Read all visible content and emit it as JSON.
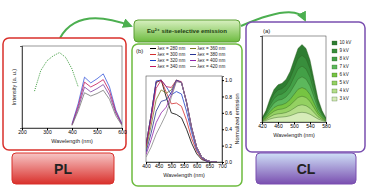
{
  "chart_data": [
    {
      "type": "line",
      "title": "PL",
      "x_label": "Wavelength (nm)",
      "y_label": "Intensity (a. u.)",
      "x": [
        250,
        275,
        300,
        325,
        350,
        375,
        400,
        425,
        450,
        475,
        500,
        525,
        550,
        575,
        600
      ],
      "xlim": [
        200,
        600
      ],
      "xticks": [
        200,
        300,
        400,
        500,
        600
      ],
      "ylim": [
        0,
        1
      ],
      "tick_labels": "x",
      "series": [
        {
          "color": "#3a9a3a",
          "line_style": "dotted",
          "values": [
            0.45,
            0.7,
            0.82,
            0.88,
            0.92,
            0.86,
            0.72,
            0.5,
            null,
            null,
            null,
            null,
            null,
            null,
            null
          ]
        },
        {
          "color": "#3b5bdb",
          "values": [
            null,
            null,
            null,
            null,
            null,
            null,
            0.05,
            0.3,
            0.62,
            0.55,
            0.6,
            0.66,
            0.5,
            0.22,
            0.05
          ]
        },
        {
          "color": "#c2185b",
          "values": [
            null,
            null,
            null,
            null,
            null,
            null,
            0.04,
            0.27,
            0.56,
            0.5,
            0.54,
            0.59,
            0.45,
            0.2,
            0.04
          ]
        },
        {
          "color": "#7b3fa0",
          "values": [
            null,
            null,
            null,
            null,
            null,
            null,
            0.04,
            0.24,
            0.5,
            0.44,
            0.48,
            0.53,
            0.4,
            0.18,
            0.04
          ]
        },
        {
          "color": "#777777",
          "values": [
            null,
            null,
            null,
            null,
            null,
            null,
            0.03,
            0.21,
            0.43,
            0.39,
            0.42,
            0.46,
            0.35,
            0.15,
            0.03
          ]
        }
      ]
    },
    {
      "type": "line",
      "title": "Eu²⁺ site-selective emission",
      "annotations": [
        "(b)"
      ],
      "x_label": "Wavelength (nm)",
      "y_label": "Normalized emission",
      "x": [
        400,
        420,
        440,
        460,
        480,
        500,
        520,
        540,
        560,
        580,
        600,
        620,
        640,
        660,
        680
      ],
      "xlim": [
        400,
        700
      ],
      "xticks": [
        400,
        450,
        500,
        550,
        600,
        650,
        700
      ],
      "ylim": [
        0,
        1.05
      ],
      "yticks": [
        {
          "value": 0,
          "label": "0.0"
        },
        0.2,
        0.4,
        0.6,
        0.8,
        {
          "value": 1,
          "label": "1.0"
        }
      ],
      "series": [
        {
          "name": "λex = 280 nm",
          "color": "#000000",
          "values": [
            0.2,
            0.57,
            0.97,
            1.0,
            0.79,
            0.6,
            0.58,
            0.54,
            0.4,
            0.23,
            0.1,
            0.03,
            0.01,
            0,
            0
          ]
        },
        {
          "name": "λex = 300 nm",
          "color": "#d32f2f",
          "values": [
            0.2,
            0.57,
            0.98,
            1.0,
            0.85,
            0.71,
            0.72,
            0.68,
            0.51,
            0.29,
            0.13,
            0.04,
            0.01,
            0,
            0
          ]
        },
        {
          "name": "λex = 320 nm",
          "color": "#1e40c8",
          "values": [
            0.2,
            0.57,
            0.99,
            1.0,
            0.92,
            0.82,
            0.86,
            0.83,
            0.62,
            0.36,
            0.15,
            0.05,
            0.01,
            0,
            0
          ]
        },
        {
          "name": "λex = 340 nm",
          "color": "#c2185b",
          "values": [
            0.18,
            0.52,
            0.9,
            1.0,
            0.92,
            0.91,
            1.0,
            0.98,
            0.73,
            0.42,
            0.18,
            0.06,
            0.02,
            0,
            0
          ]
        },
        {
          "name": "λex = 360 nm",
          "color": "#7a7a2a",
          "values": [
            0.15,
            0.44,
            0.76,
            0.88,
            0.84,
            0.88,
            1.0,
            0.97,
            0.73,
            0.42,
            0.18,
            0.06,
            0.02,
            0,
            0
          ]
        },
        {
          "name": "λex = 380 nm",
          "color": "#283593",
          "values": [
            0.12,
            0.35,
            0.62,
            0.74,
            0.76,
            0.85,
            1.0,
            0.97,
            0.73,
            0.42,
            0.18,
            0.06,
            0.02,
            0,
            0
          ]
        },
        {
          "name": "λex = 400 nm",
          "color": "#8e24aa",
          "values": [
            0.09,
            0.27,
            0.48,
            0.6,
            0.67,
            0.82,
            0.99,
            0.97,
            0.73,
            0.42,
            0.18,
            0.06,
            0.02,
            0,
            0
          ]
        },
        {
          "name": "λex = 420 nm",
          "color": "#888888",
          "values": [
            0.06,
            0.18,
            0.34,
            0.46,
            0.59,
            0.79,
            0.98,
            0.97,
            0.73,
            0.42,
            0.18,
            0.06,
            0.02,
            0,
            0
          ]
        }
      ]
    },
    {
      "type": "area",
      "title": "CL",
      "annotations": [
        "(a)"
      ],
      "x_label": "Wavelength (nm)",
      "x": [
        420,
        430,
        440,
        450,
        460,
        470,
        480,
        490,
        500,
        510,
        520,
        530,
        540,
        550,
        560,
        570,
        580
      ],
      "xlim": [
        420,
        580
      ],
      "xticks": [
        420,
        460,
        500,
        540,
        580
      ],
      "ylim": [
        0,
        4
      ],
      "tick_labels": "x",
      "series": [
        {
          "name": "10 kV",
          "color": "#2e7d32",
          "values": [
            0.18,
            0.54,
            1.08,
            1.51,
            1.73,
            1.8,
            1.98,
            2.34,
            2.88,
            3.42,
            3.6,
            3.42,
            2.88,
            1.98,
            1.08,
            0.54,
            0.18
          ]
        },
        {
          "name": "9 kV",
          "color": "#388e3c",
          "values": [
            0.16,
            0.47,
            0.93,
            1.3,
            1.49,
            1.55,
            1.71,
            2.02,
            2.48,
            2.95,
            3.1,
            2.95,
            2.48,
            1.71,
            0.93,
            0.47,
            0.16
          ]
        },
        {
          "name": "8 kV",
          "color": "#43a047",
          "values": [
            0.13,
            0.39,
            0.78,
            1.09,
            1.25,
            1.3,
            1.43,
            1.69,
            2.08,
            2.47,
            2.6,
            2.47,
            2.08,
            1.43,
            0.78,
            0.39,
            0.13
          ]
        },
        {
          "name": "7 kV",
          "color": "#5cb85c",
          "values": [
            0.11,
            0.32,
            0.63,
            0.88,
            1.01,
            1.05,
            1.16,
            1.37,
            1.68,
            2.0,
            2.1,
            2.0,
            1.68,
            1.16,
            0.63,
            0.32,
            0.11
          ]
        },
        {
          "name": "6 kV",
          "color": "#76c442",
          "values": [
            0.08,
            0.24,
            0.48,
            0.67,
            0.77,
            0.8,
            0.88,
            1.04,
            1.28,
            1.52,
            1.6,
            1.52,
            1.28,
            0.88,
            0.48,
            0.24,
            0.08
          ]
        },
        {
          "name": "5 kV",
          "color": "#94d162",
          "values": [
            0.06,
            0.18,
            0.36,
            0.5,
            0.58,
            0.6,
            0.66,
            0.78,
            0.96,
            1.14,
            1.2,
            1.14,
            0.96,
            0.66,
            0.36,
            0.18,
            0.06
          ]
        },
        {
          "name": "4 kV",
          "color": "#b5de8a",
          "values": [
            0.04,
            0.12,
            0.24,
            0.34,
            0.38,
            0.4,
            0.44,
            0.52,
            0.64,
            0.76,
            0.8,
            0.76,
            0.64,
            0.44,
            0.24,
            0.12,
            0.04
          ]
        },
        {
          "name": "3 kV",
          "color": "#d6ecb8",
          "values": [
            0.02,
            0.07,
            0.14,
            0.19,
            0.22,
            0.23,
            0.25,
            0.29,
            0.36,
            0.43,
            0.45,
            0.43,
            0.36,
            0.25,
            0.14,
            0.07,
            0.02
          ]
        }
      ]
    }
  ]
}
